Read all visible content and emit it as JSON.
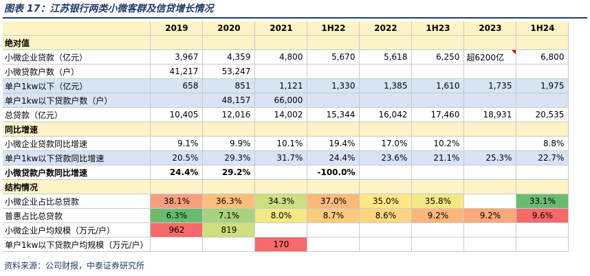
{
  "title": "图表 17：江苏银行两类小微客群及信贷增长情况",
  "source": "资料来源：公司财报，中泰证券研究所",
  "columns": [
    "",
    "2019",
    "2020",
    "2021",
    "1H22",
    "2022",
    "1H23",
    "2023",
    "1H24"
  ],
  "sections": {
    "absolute": "绝对值",
    "growth": "同比增速",
    "structure": "结构情况"
  },
  "rows": [
    {
      "label": "小微企业贷款（亿元）",
      "cells": [
        "3,967",
        "4,359",
        "4,800",
        "5,670",
        "5,618",
        "6,250",
        "超6200亿",
        "6,800"
      ]
    },
    {
      "label": "小微贷款户数（户）",
      "cells": [
        "41,217",
        "53,247",
        "",
        "",
        "",
        "",
        "",
        ""
      ]
    },
    {
      "label": "单户1kw以下（亿元）",
      "cells": [
        "658",
        "851",
        "1,121",
        "1,330",
        "1,385",
        "1,610",
        "1,735",
        "1,975"
      ]
    },
    {
      "label": "单户1kw以下贷款户数（户）",
      "cells": [
        "",
        "48,157",
        "66,000",
        "",
        "",
        "",
        "",
        ""
      ]
    },
    {
      "label": "总贷款（亿元）",
      "cells": [
        "10,405",
        "12,016",
        "14,002",
        "15,344",
        "16,042",
        "17,460",
        "18,931",
        "20,535"
      ]
    },
    {
      "label": "小微企业贷款同比增速",
      "cells": [
        "9.1%",
        "9.9%",
        "10.1%",
        "19.4%",
        "17.0%",
        "10.2%",
        "",
        "8.8%"
      ]
    },
    {
      "label": "单户1kw以下贷款同比增速",
      "cells": [
        "20.5%",
        "29.3%",
        "31.7%",
        "24.4%",
        "23.6%",
        "21.1%",
        "25.3%",
        "22.7%"
      ]
    },
    {
      "label": "小微贷款户数同比增速",
      "cells": [
        "24.4%",
        "29.2%",
        "",
        "-100.0%",
        "",
        "",
        "",
        ""
      ]
    },
    {
      "label": "小微企业占比总贷款",
      "cells": [
        "38.1%",
        "36.3%",
        "34.3%",
        "37.0%",
        "35.0%",
        "35.8%",
        "",
        "33.1%"
      ]
    },
    {
      "label": "普惠占比总贷款",
      "cells": [
        "6.3%",
        "7.1%",
        "8.0%",
        "8.7%",
        "8.6%",
        "9.2%",
        "9.2%",
        "9.6%"
      ]
    },
    {
      "label": "小微企业户均规模（万元/户）",
      "cells": [
        "962",
        "819",
        "",
        "",
        "",
        "",
        "",
        ""
      ]
    },
    {
      "label": "单户1kw以下贷款户均规模（万元/户）",
      "cells": [
        "",
        "",
        "170",
        "",
        "",
        "",
        "",
        ""
      ]
    }
  ],
  "heat_colors": {
    "ratio_small": [
      "#f8a07e",
      "#fcbf7b",
      "#cddf7f",
      "#fdb87a",
      "#ffe784",
      "#f3e884",
      "",
      "#69bc6f"
    ],
    "ratio_puhui": [
      "#69bc6f",
      "#a9d27e",
      "#f2e884",
      "#fbca7e",
      "#ffd581",
      "#fbb77b",
      "#fba87b",
      "#f8696b"
    ],
    "avg_small": [
      "#f8696b",
      "#cddf7f",
      "",
      "",
      "",
      "",
      "",
      ""
    ],
    "avg_1kw": [
      "",
      "",
      "#f8696b",
      "",
      "",
      "",
      "",
      ""
    ]
  }
}
